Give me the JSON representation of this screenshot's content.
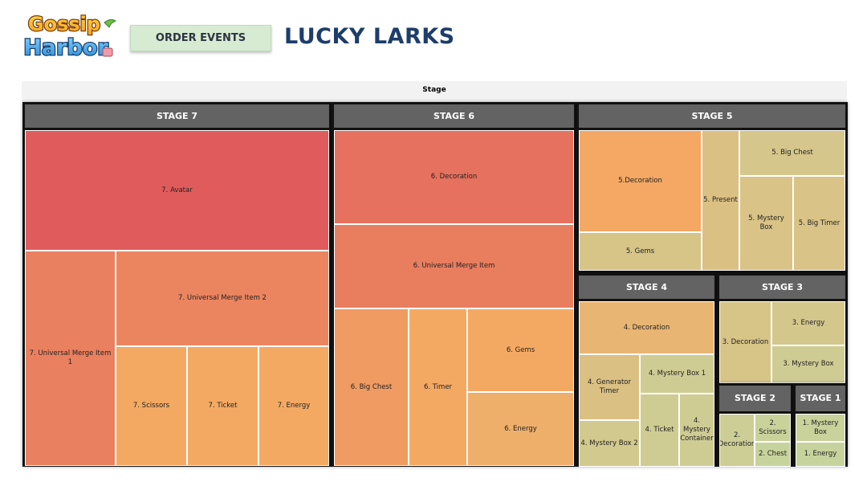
{
  "header": {
    "logo_text_top": "Gossip",
    "logo_text_bottom": "Harbor",
    "logo_colors": {
      "top": "#f7a21b",
      "bottom": "#3aa6e8",
      "outline": "#7a3d12"
    },
    "order_button_label": "ORDER EVENTS",
    "title": "LUCKY LARKS"
  },
  "chart_data": {
    "type": "treemap",
    "title": "Stage",
    "color_scale": {
      "low": "#c7d39c",
      "mid": "#f4a963",
      "high": "#e05c5c"
    },
    "groups": [
      {
        "name": "STAGE 7",
        "items": [
          {
            "label": "7. Avatar",
            "value": 10.0
          },
          {
            "label": "7. Universal Merge Item 1",
            "value": 7.4
          },
          {
            "label": "7. Universal Merge Item 2",
            "value": 7.1
          },
          {
            "label": "7. Scissors",
            "value": 4.5
          },
          {
            "label": "7. Ticket",
            "value": 4.5
          },
          {
            "label": "7. Energy",
            "value": 4.5
          }
        ]
      },
      {
        "name": "STAGE 6",
        "items": [
          {
            "label": "6. Decoration",
            "value": 8.5
          },
          {
            "label": "6. Universal Merge Item",
            "value": 7.6
          },
          {
            "label": "6. Big Chest",
            "value": 5.5
          },
          {
            "label": "6. Timer",
            "value": 4.5
          },
          {
            "label": "6. Gems",
            "value": 4.5
          },
          {
            "label": "6. Energy",
            "value": 4.0
          }
        ]
      },
      {
        "name": "STAGE 5",
        "items": [
          {
            "label": "5.Decoration",
            "value": 4.6
          },
          {
            "label": "5. Gems",
            "value": 2.2
          },
          {
            "label": "5. Present",
            "value": 2.5
          },
          {
            "label": "5. Big Chest",
            "value": 2.0
          },
          {
            "label": "5. Mystery Box",
            "value": 2.3
          },
          {
            "label": "5. Big Timer",
            "value": 2.3
          }
        ]
      },
      {
        "name": "STAGE 4",
        "items": [
          {
            "label": "4. Decoration",
            "value": 3.5
          },
          {
            "label": "4. Generator Timer",
            "value": 2.5
          },
          {
            "label": "4. Mystery Box 2",
            "value": 1.8
          },
          {
            "label": "4. Mystery Box 1",
            "value": 1.5
          },
          {
            "label": "4. Ticket",
            "value": 1.5
          },
          {
            "label": "4. Mystery Container",
            "value": 1.5
          }
        ]
      },
      {
        "name": "STAGE 3",
        "items": [
          {
            "label": "3. Decoration",
            "value": 2.2
          },
          {
            "label": "3. Energy",
            "value": 1.9
          },
          {
            "label": "3. Mystery Box",
            "value": 1.5
          }
        ]
      },
      {
        "name": "STAGE 2",
        "items": [
          {
            "label": "2. Decoration",
            "value": 1.3
          },
          {
            "label": "2. Scissors",
            "value": 1.0
          },
          {
            "label": "2. Chest",
            "value": 0.9
          }
        ]
      },
      {
        "name": "STAGE 1",
        "items": [
          {
            "label": "1. Mystery Box",
            "value": 1.0
          },
          {
            "label": "1. Energy",
            "value": 0.9
          }
        ]
      }
    ]
  }
}
